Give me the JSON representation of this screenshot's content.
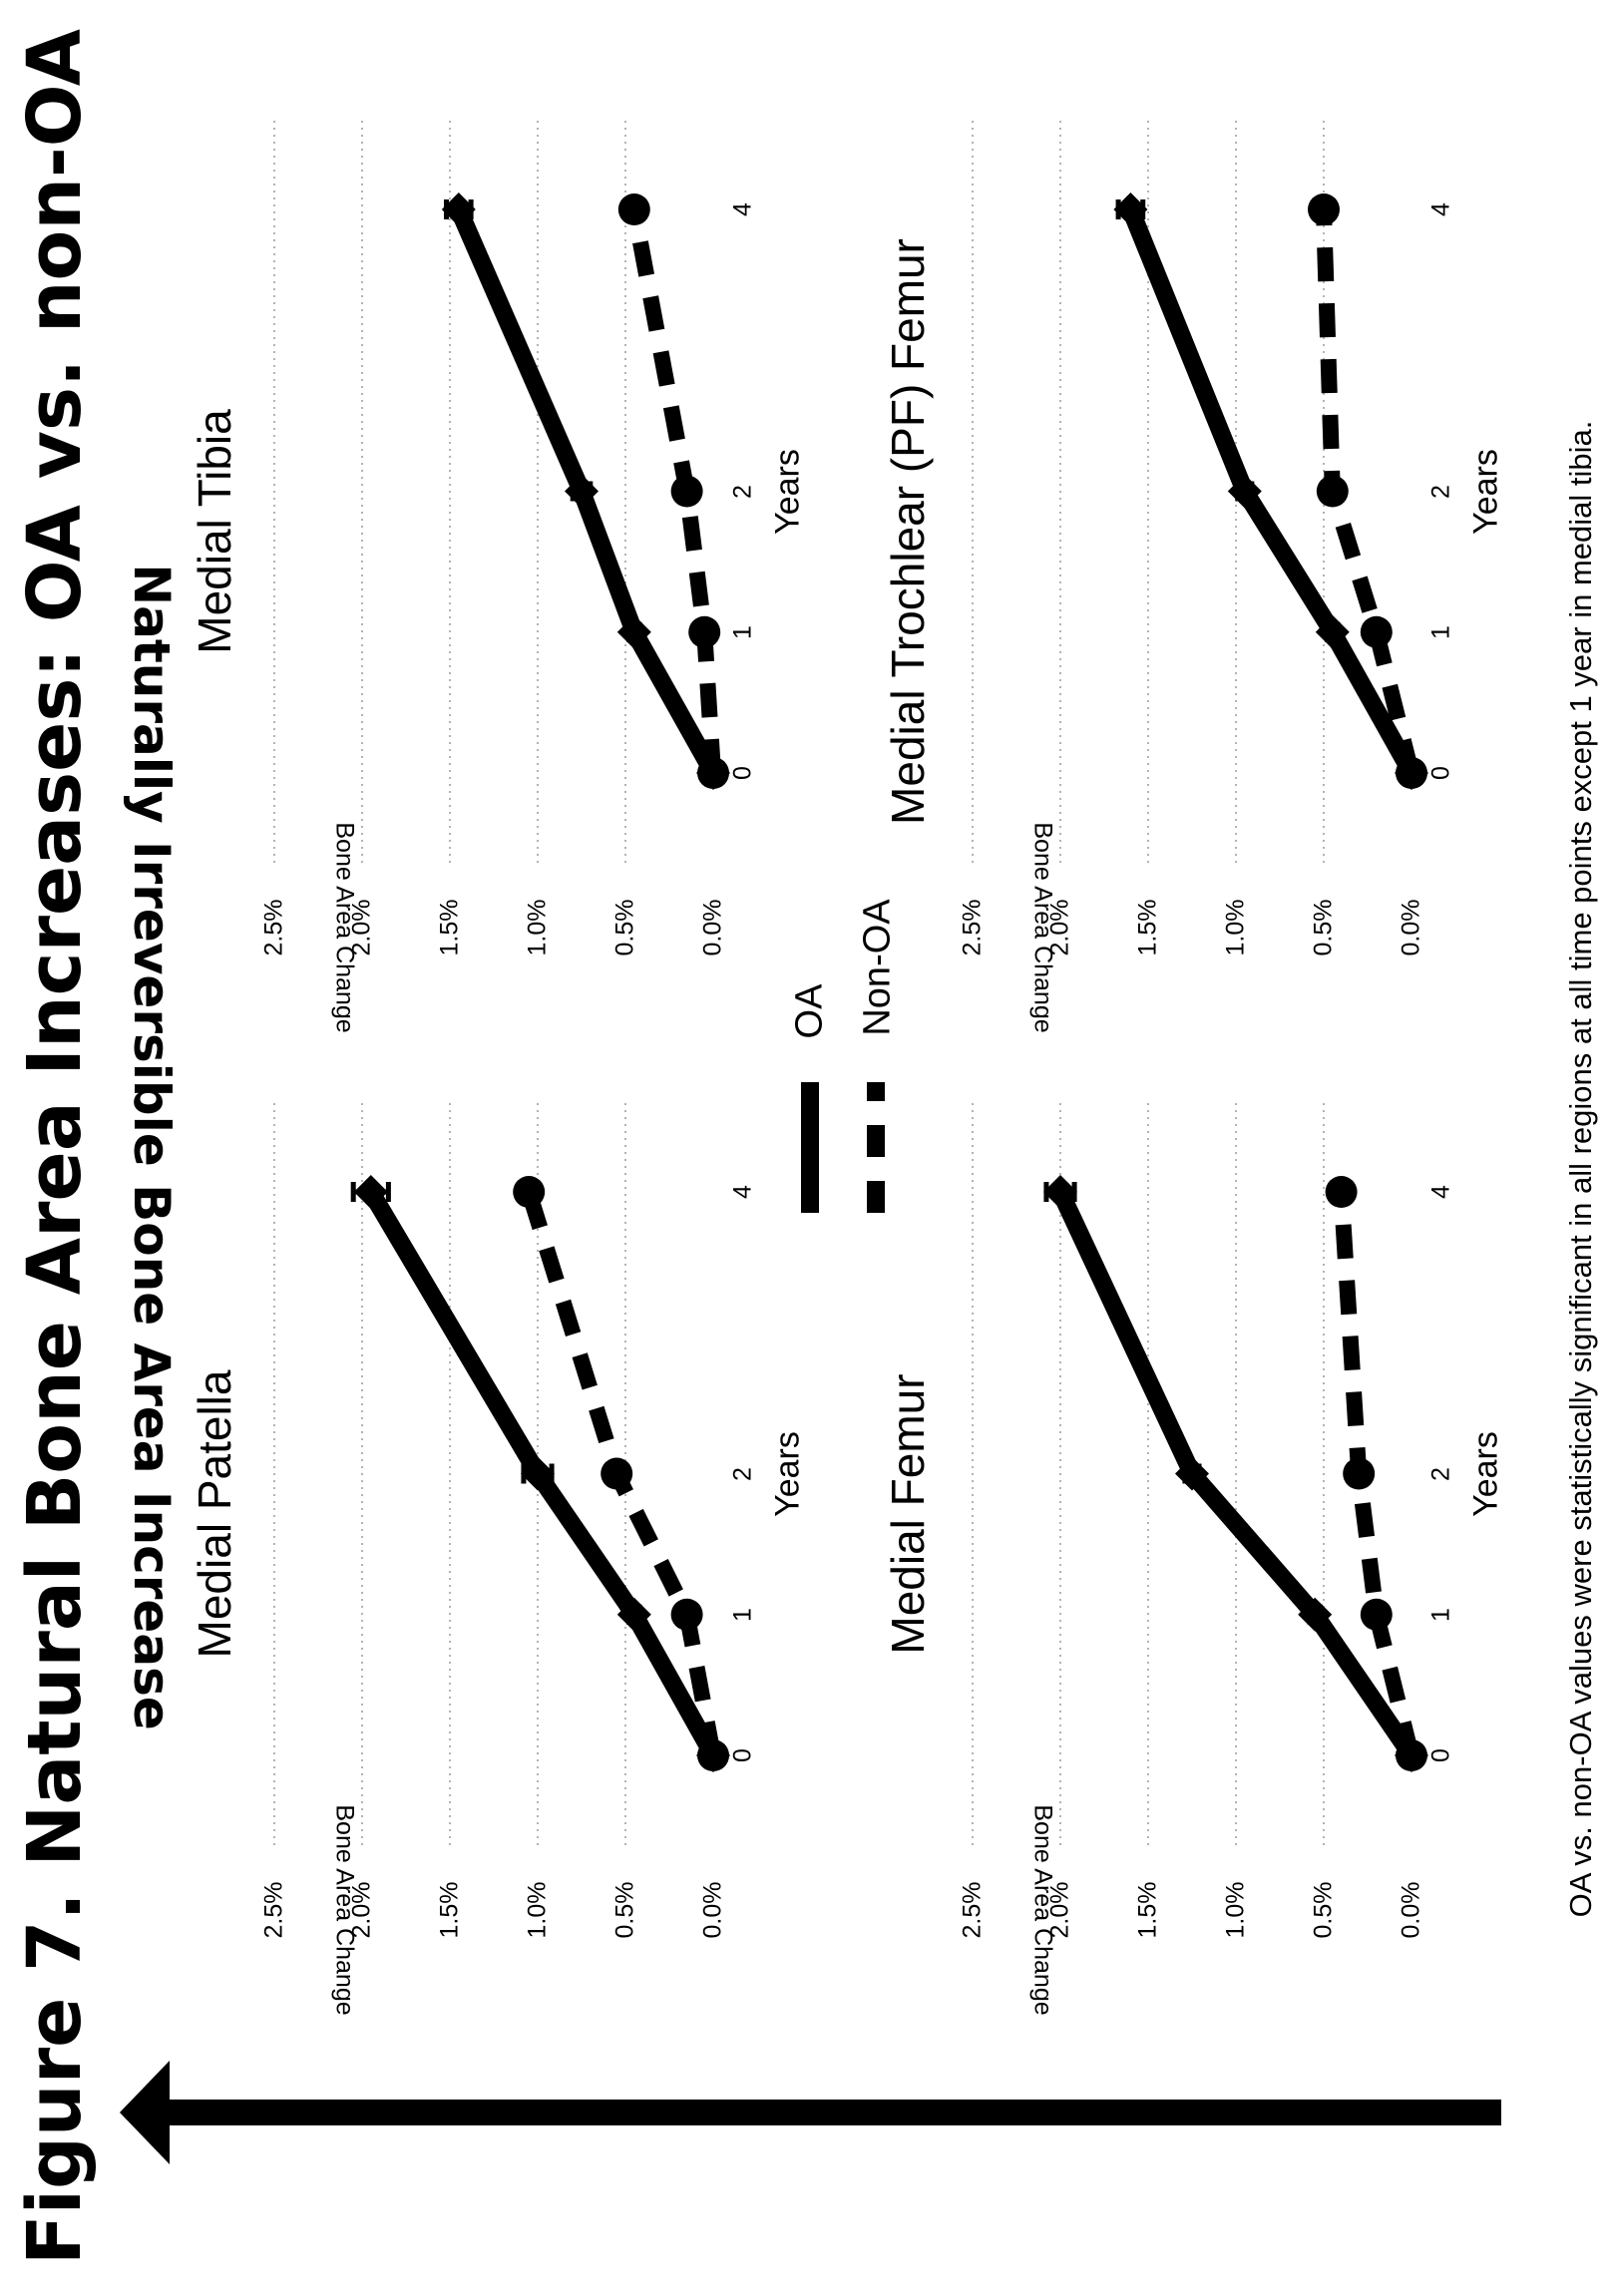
{
  "figure": {
    "title": "Figure 7. Natural Bone Area Increases:  OA vs. non-OA",
    "arrow_label": "Naturally Irreversible Bone Area Increase",
    "footnote": "OA vs. non-OA values were statistically significant in all regions at all time points except 1 year in medial tibia.",
    "line_color": "#000000",
    "grid_color": "#9a9a9a"
  },
  "legend": {
    "oa_label": "OA",
    "non_oa_label": "Non-OA"
  },
  "chart_data": [
    {
      "type": "line",
      "title": "Medial Patella",
      "xlabel": "Years",
      "ylabel": "Bone Area Change",
      "x": [
        0,
        1,
        2,
        4
      ],
      "x_tick_labels": [
        "0",
        "1",
        "2",
        "4"
      ],
      "y_tick_labels": [
        "0.0%",
        "0.5%",
        "1.0%",
        "1.5%",
        "2.0%",
        "2.5%"
      ],
      "ylim": [
        0,
        2.5
      ],
      "grid": true,
      "series": [
        {
          "name": "OA",
          "style": "solid",
          "values": [
            0.0,
            0.45,
            1.0,
            1.95
          ],
          "errors": [
            0,
            0.03,
            0.08,
            0.1
          ]
        },
        {
          "name": "Non-OA",
          "style": "dashed",
          "values": [
            0.0,
            0.15,
            0.55,
            1.05
          ],
          "errors": [
            0,
            0.02,
            0.03,
            0.04
          ]
        }
      ]
    },
    {
      "type": "line",
      "title": "Medial Tibia",
      "xlabel": "Years",
      "ylabel": "Bone Area Change",
      "x": [
        0,
        1,
        2,
        4
      ],
      "x_tick_labels": [
        "0",
        "1",
        "2",
        "4"
      ],
      "y_tick_labels": [
        "0.0%",
        "0.5%",
        "1.0%",
        "1.5%",
        "2.0%",
        "2.5%"
      ],
      "ylim": [
        0,
        2.5
      ],
      "grid": true,
      "series": [
        {
          "name": "OA",
          "style": "solid",
          "values": [
            0.0,
            0.45,
            0.75,
            1.45
          ],
          "errors": [
            0,
            0.03,
            0.05,
            0.07
          ]
        },
        {
          "name": "Non-OA",
          "style": "dashed",
          "values": [
            0.0,
            0.05,
            0.15,
            0.45
          ],
          "errors": [
            0,
            0.02,
            0.02,
            0.03
          ]
        }
      ]
    },
    {
      "type": "line",
      "title": "Medial Femur",
      "xlabel": "Years",
      "ylabel": "Bone Area Change",
      "x": [
        0,
        1,
        2,
        4
      ],
      "x_tick_labels": [
        "0",
        "1",
        "2",
        "4"
      ],
      "y_tick_labels": [
        "0.0%",
        "0.5%",
        "1.0%",
        "1.5%",
        "2.0%",
        "2.5%"
      ],
      "ylim": [
        0,
        2.5
      ],
      "grid": true,
      "series": [
        {
          "name": "OA",
          "style": "solid",
          "values": [
            0.0,
            0.55,
            1.25,
            2.0
          ],
          "errors": [
            0,
            0.03,
            0.04,
            0.08
          ]
        },
        {
          "name": "Non-OA",
          "style": "dashed",
          "values": [
            0.0,
            0.2,
            0.3,
            0.4
          ],
          "errors": [
            0,
            0.02,
            0.02,
            0.03
          ]
        }
      ]
    },
    {
      "type": "line",
      "title": "Medial Trochlear (PF) Femur",
      "xlabel": "Years",
      "ylabel": "Bone Area Change",
      "x": [
        0,
        1,
        2,
        4
      ],
      "x_tick_labels": [
        "0",
        "1",
        "2",
        "4"
      ],
      "y_tick_labels": [
        "0.0%",
        "0.5%",
        "1.0%",
        "1.5%",
        "2.0%",
        "2.5%"
      ],
      "ylim": [
        0,
        2.5
      ],
      "grid": true,
      "series": [
        {
          "name": "OA",
          "style": "solid",
          "values": [
            0.0,
            0.45,
            0.95,
            1.6
          ],
          "errors": [
            0,
            0.03,
            0.04,
            0.07
          ]
        },
        {
          "name": "Non-OA",
          "style": "dashed",
          "values": [
            0.0,
            0.2,
            0.45,
            0.5
          ],
          "errors": [
            0,
            0.02,
            0.03,
            0.03
          ]
        }
      ]
    }
  ]
}
